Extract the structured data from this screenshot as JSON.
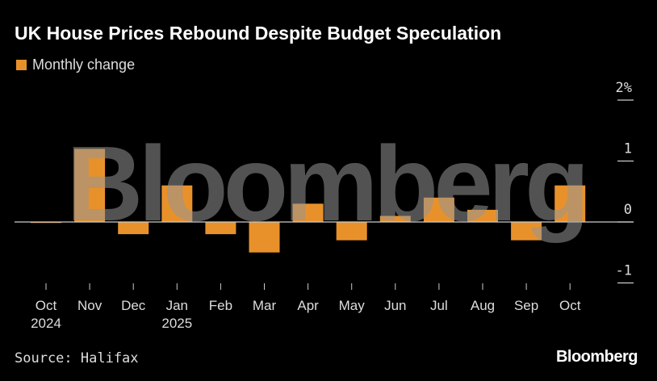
{
  "title": "UK House Prices Rebound Despite Budget Speculation",
  "legend": [
    {
      "label": "Monthly change",
      "color": "#e8912b"
    }
  ],
  "source": "Source: Halifax",
  "brand": "Bloomberg",
  "watermark": "Bloomberg",
  "chart_data": {
    "type": "bar",
    "title": "UK House Prices Rebound Despite Budget Speculation",
    "categories": [
      "Oct 2024",
      "Nov",
      "Dec",
      "Jan 2025",
      "Feb",
      "Mar",
      "Apr",
      "May",
      "Jun",
      "Jul",
      "Aug",
      "Sep",
      "Oct"
    ],
    "x_tick_labels": [
      [
        "Oct",
        "2024"
      ],
      [
        "Nov"
      ],
      [
        "Dec"
      ],
      [
        "Jan",
        "2025"
      ],
      [
        "Feb"
      ],
      [
        "Mar"
      ],
      [
        "Apr"
      ],
      [
        "May"
      ],
      [
        "Jun"
      ],
      [
        "Jul"
      ],
      [
        "Aug"
      ],
      [
        "Sep"
      ],
      [
        "Oct"
      ]
    ],
    "series": [
      {
        "name": "Monthly change",
        "color": "#e8912b",
        "values": [
          -0.01,
          1.2,
          -0.2,
          0.6,
          -0.2,
          -0.5,
          0.3,
          -0.3,
          0.1,
          0.4,
          0.2,
          -0.3,
          0.6
        ]
      }
    ],
    "xlabel": "",
    "ylabel": "",
    "ylim": [
      -1,
      2
    ],
    "y_ticks": [
      {
        "value": 2,
        "label": "2%"
      },
      {
        "value": 1,
        "label": "1"
      },
      {
        "value": 0,
        "label": "0"
      },
      {
        "value": -1,
        "label": "-1"
      }
    ],
    "grid": false,
    "legend_position": "top-left",
    "y_axis_side": "right"
  }
}
